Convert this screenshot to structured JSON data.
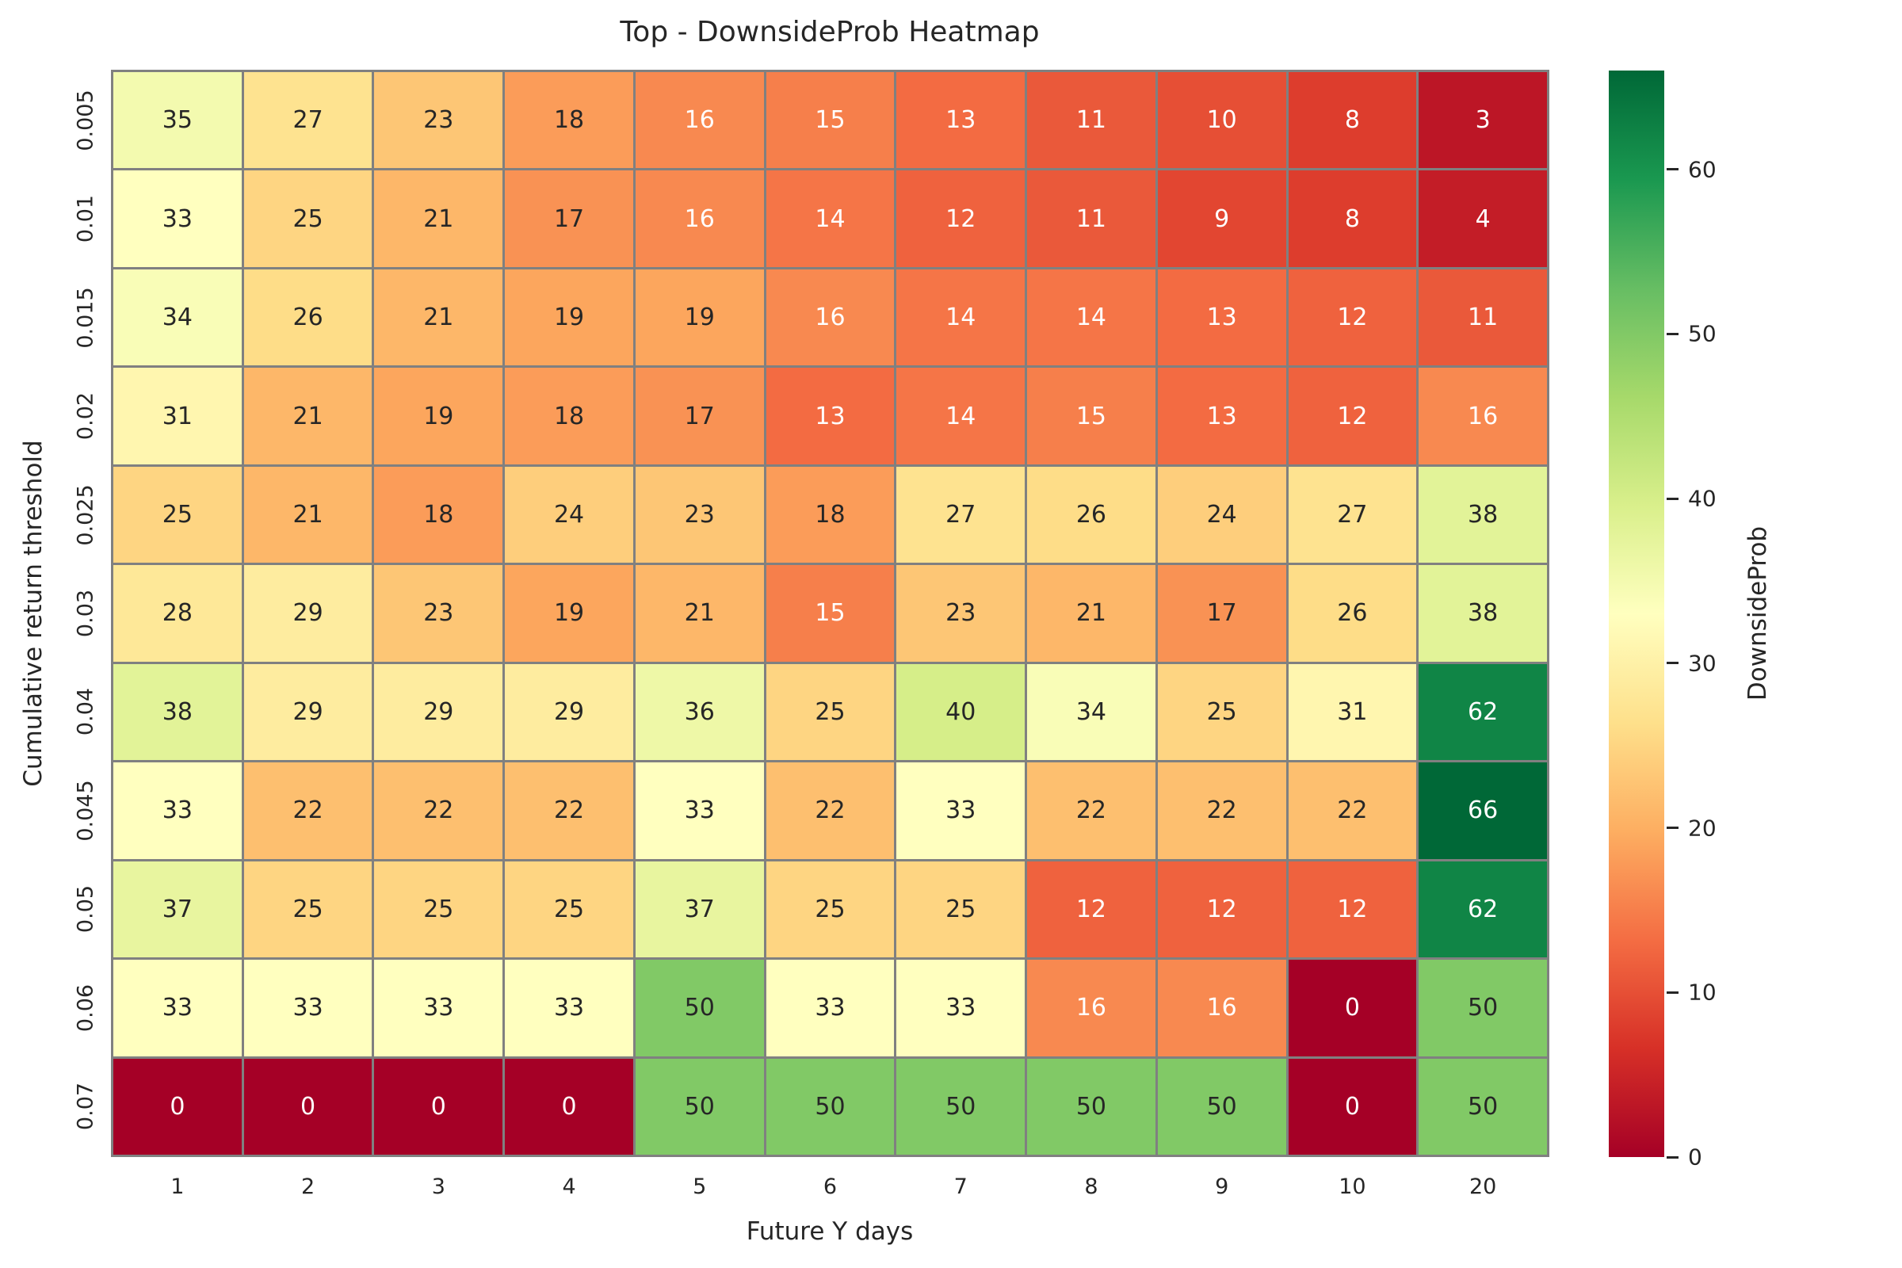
{
  "chart_data": {
    "type": "heatmap",
    "title": "Top - DownsideProb Heatmap",
    "xlabel": "Future Y days",
    "ylabel": "Cumulative return threshold",
    "x_categories": [
      "1",
      "2",
      "3",
      "4",
      "5",
      "6",
      "7",
      "8",
      "9",
      "10",
      "20"
    ],
    "y_categories": [
      "0.005",
      "0.01",
      "0.015",
      "0.02",
      "0.025",
      "0.03",
      "0.04",
      "0.045",
      "0.05",
      "0.06",
      "0.07"
    ],
    "values": [
      [
        35,
        27,
        23,
        18,
        16,
        15,
        13,
        11,
        10,
        8,
        3
      ],
      [
        33,
        25,
        21,
        17,
        16,
        14,
        12,
        11,
        9,
        8,
        4
      ],
      [
        34,
        26,
        21,
        19,
        19,
        16,
        14,
        14,
        13,
        12,
        11
      ],
      [
        31,
        21,
        19,
        18,
        17,
        13,
        14,
        15,
        13,
        12,
        16
      ],
      [
        25,
        21,
        18,
        24,
        23,
        18,
        27,
        26,
        24,
        27,
        38
      ],
      [
        28,
        29,
        23,
        19,
        21,
        15,
        23,
        21,
        17,
        26,
        38
      ],
      [
        38,
        29,
        29,
        29,
        36,
        25,
        40,
        34,
        25,
        31,
        62
      ],
      [
        33,
        22,
        22,
        22,
        33,
        22,
        33,
        22,
        22,
        22,
        66
      ],
      [
        37,
        25,
        25,
        25,
        37,
        25,
        25,
        12,
        12,
        12,
        62
      ],
      [
        33,
        33,
        33,
        33,
        50,
        33,
        33,
        16,
        16,
        0,
        50
      ],
      [
        0,
        0,
        0,
        0,
        50,
        50,
        50,
        50,
        50,
        0,
        50
      ]
    ],
    "vmin": 0,
    "vmax": 66,
    "grid_on": true,
    "grid_line_color": "#808080",
    "annotation_dark_color": "#262626",
    "annotation_light_color": "#ffffff",
    "colormap": {
      "name": "RdYlGn",
      "stops": [
        "#a50026",
        "#d73027",
        "#f46d43",
        "#fdae61",
        "#fee08b",
        "#ffffbf",
        "#d9ef8b",
        "#a6d96a",
        "#66bd63",
        "#1a9850",
        "#006837"
      ]
    },
    "colorbar": {
      "label": "DownsideProb",
      "ticks": [
        0,
        10,
        20,
        30,
        40,
        50,
        60
      ],
      "position": "right"
    }
  }
}
